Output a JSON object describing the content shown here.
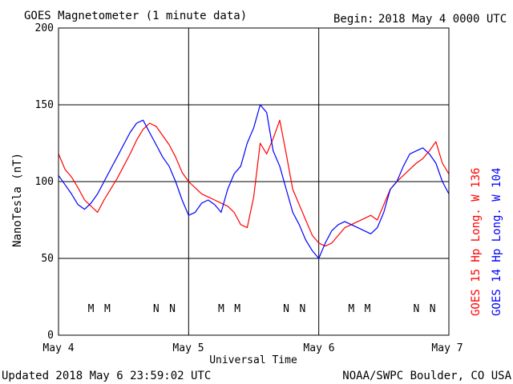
{
  "chart_data": {
    "type": "line",
    "title": "GOES Magnetometer (1 minute data)",
    "begin_label": "Begin:",
    "begin_value": "2018 May 4 0000 UTC",
    "xlabel": "Universal Time",
    "ylabel": "NanoTesla (nT)",
    "ylim": [
      0,
      200
    ],
    "yticks": [
      "0",
      "50",
      "100",
      "150",
      "200"
    ],
    "xticks": [
      "May 4",
      "May 5",
      "May 6",
      "May 7"
    ],
    "xlim_days": [
      0,
      3
    ],
    "grid": true,
    "footer_left": "Updated 2018 May  6 23:59:02 UTC",
    "footer_right": "NOAA/SWPC Boulder, CO USA",
    "colors": {
      "goes15": "#ff0000",
      "goes14": "#0000ff",
      "grid": "#000000"
    },
    "legend": [
      {
        "text": "GOES 15 Hp  Long. W 136",
        "color": "#ff0000"
      },
      {
        "text": "GOES 14 Hp  Long. W 104",
        "color": "#0000ff"
      }
    ],
    "noon_midnight_markers": [
      {
        "text": "M",
        "series": "GOES 14",
        "day": 0.25
      },
      {
        "text": "M",
        "series": "GOES 15",
        "day": 0.375
      },
      {
        "text": "N",
        "series": "GOES 14",
        "day": 0.75
      },
      {
        "text": "N",
        "series": "GOES 15",
        "day": 0.875
      },
      {
        "text": "M",
        "series": "GOES 14",
        "day": 1.25
      },
      {
        "text": "M",
        "series": "GOES 15",
        "day": 1.375
      },
      {
        "text": "N",
        "series": "GOES 14",
        "day": 1.75
      },
      {
        "text": "N",
        "series": "GOES 15",
        "day": 1.875
      },
      {
        "text": "M",
        "series": "GOES 14",
        "day": 2.25
      },
      {
        "text": "M",
        "series": "GOES 15",
        "day": 2.375
      },
      {
        "text": "N",
        "series": "GOES 14",
        "day": 2.75
      },
      {
        "text": "N",
        "series": "GOES 15",
        "day": 2.875
      }
    ],
    "series": [
      {
        "name": "GOES 15 Hp  Long. W 136",
        "color": "#ff0000",
        "x": [
          0.0,
          0.05,
          0.1,
          0.15,
          0.2,
          0.25,
          0.3,
          0.35,
          0.4,
          0.45,
          0.5,
          0.55,
          0.6,
          0.65,
          0.7,
          0.75,
          0.8,
          0.85,
          0.9,
          0.95,
          1.0,
          1.05,
          1.1,
          1.15,
          1.2,
          1.25,
          1.3,
          1.35,
          1.4,
          1.45,
          1.5,
          1.55,
          1.6,
          1.65,
          1.7,
          1.75,
          1.8,
          1.85,
          1.9,
          1.95,
          2.0,
          2.05,
          2.1,
          2.15,
          2.2,
          2.25,
          2.3,
          2.35,
          2.4,
          2.45,
          2.5,
          2.55,
          2.6,
          2.65,
          2.7,
          2.75,
          2.8,
          2.85,
          2.9,
          2.95,
          3.0
        ],
        "y": [
          118,
          108,
          103,
          96,
          88,
          84,
          80,
          88,
          95,
          102,
          110,
          118,
          127,
          134,
          138,
          136,
          130,
          124,
          116,
          106,
          100,
          96,
          92,
          90,
          88,
          86,
          84,
          80,
          72,
          70,
          90,
          125,
          118,
          128,
          140,
          118,
          95,
          85,
          75,
          65,
          60,
          58,
          60,
          65,
          70,
          72,
          74,
          76,
          78,
          75,
          85,
          95,
          100,
          104,
          108,
          112,
          115,
          120,
          126,
          112,
          105
        ]
      },
      {
        "name": "GOES 14 Hp  Long. W 104",
        "color": "#0000ff",
        "x": [
          0.0,
          0.05,
          0.1,
          0.15,
          0.2,
          0.25,
          0.3,
          0.35,
          0.4,
          0.45,
          0.5,
          0.55,
          0.6,
          0.65,
          0.7,
          0.75,
          0.8,
          0.85,
          0.9,
          0.95,
          1.0,
          1.05,
          1.1,
          1.15,
          1.2,
          1.25,
          1.3,
          1.35,
          1.4,
          1.45,
          1.5,
          1.55,
          1.6,
          1.65,
          1.7,
          1.75,
          1.8,
          1.85,
          1.9,
          1.95,
          2.0,
          2.05,
          2.1,
          2.15,
          2.2,
          2.25,
          2.3,
          2.35,
          2.4,
          2.45,
          2.5,
          2.55,
          2.6,
          2.65,
          2.7,
          2.75,
          2.8,
          2.85,
          2.9,
          2.95,
          3.0
        ],
        "y": [
          104,
          98,
          92,
          85,
          82,
          86,
          92,
          100,
          108,
          116,
          124,
          132,
          138,
          140,
          132,
          124,
          116,
          110,
          100,
          88,
          78,
          80,
          86,
          88,
          85,
          80,
          95,
          105,
          110,
          125,
          135,
          150,
          145,
          120,
          110,
          95,
          80,
          72,
          62,
          55,
          50,
          60,
          68,
          72,
          74,
          72,
          70,
          68,
          66,
          70,
          80,
          95,
          100,
          110,
          118,
          120,
          122,
          118,
          112,
          100,
          92
        ]
      }
    ]
  }
}
